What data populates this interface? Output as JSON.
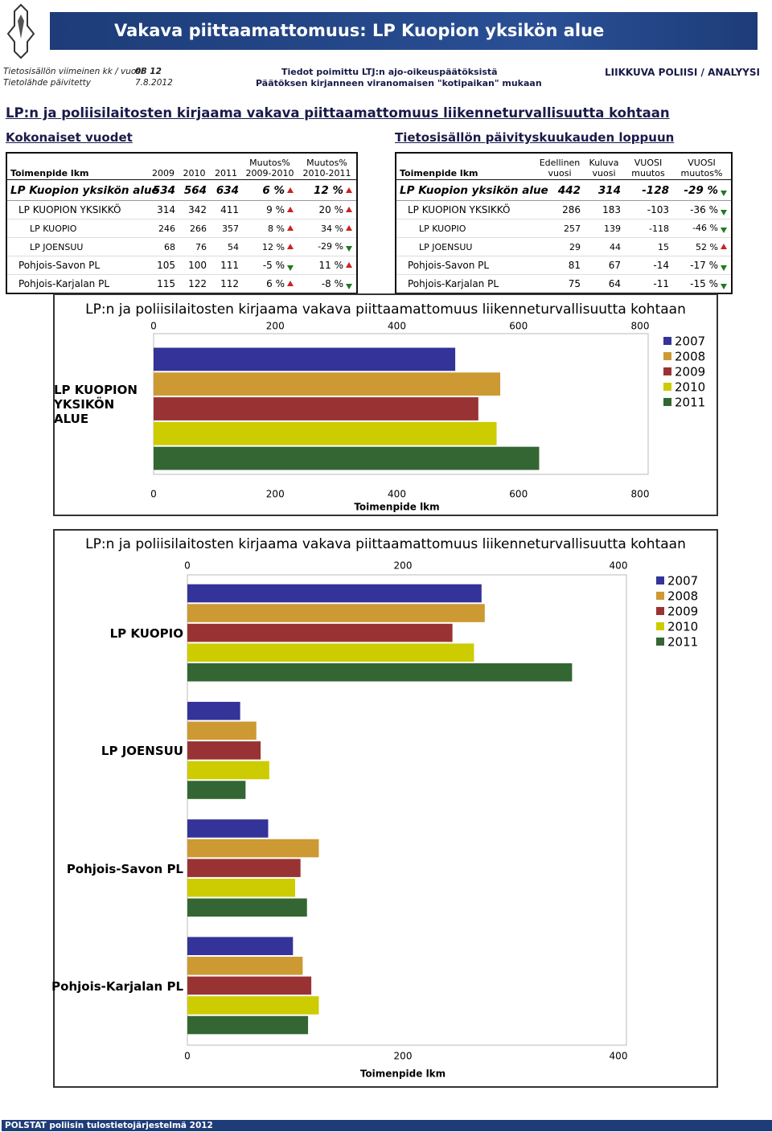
{
  "header": {
    "title": "Vakava piittaamattomuus: LP Kuopion yksikön alue",
    "info": {
      "period_label": "Tietosisällön viimeinen kk / vuosi",
      "period": "08 12",
      "updated_label": "Tietolähde päivitetty",
      "updated": "7.8.2012",
      "source_1": "Tiedot poimittu LTJ:n ajo-oikeuspäätöksistä",
      "source_2": "Päätöksen kirjanneen viranomaisen \"kotipaikan\" mukaan",
      "unit": "LIIKKUVA POLIISI / ANALYYSI"
    }
  },
  "section_title": "LP:n ja poliisilaitosten kirjaama vakava piittaamattomuus liikenneturvallisuutta kohtaan",
  "table_left": {
    "caption": "Kokonaiset vuodet",
    "headers": [
      "Toimenpide lkm",
      "2009",
      "2010",
      "2011",
      "Muutos%\n2009-2010",
      "Muutos%\n2010-2011"
    ],
    "rows": [
      [
        "LP Kuopion yksikön alue",
        "534",
        "564",
        "634",
        "6 %",
        "12 %"
      ],
      [
        "LP KUOPION YKSIKKÖ",
        "314",
        "342",
        "411",
        "9 %",
        "20 %"
      ],
      [
        "LP KUOPIO",
        "246",
        "266",
        "357",
        "8 %",
        "34 %"
      ],
      [
        "LP JOENSUU",
        "68",
        "76",
        "54",
        "12 %",
        "-29 %"
      ],
      [
        "Pohjois-Savon PL",
        "105",
        "100",
        "111",
        "-5 %",
        "11 %"
      ],
      [
        "Pohjois-Karjalan PL",
        "115",
        "122",
        "112",
        "6 %",
        "-8 %"
      ]
    ]
  },
  "table_right": {
    "caption": "Tietosisällön päivityskuukauden loppuun",
    "headers": [
      "Toimenpide lkm",
      "Edellinen\nvuosi",
      "Kuluva\nvuosi",
      "VUOSI\nmuutos",
      "VUOSI\nmuutos%"
    ],
    "rows": [
      [
        "LP Kuopion yksikön alue",
        "442",
        "314",
        "-128",
        "-29 %"
      ],
      [
        "LP KUOPION YKSIKKÖ",
        "286",
        "183",
        "-103",
        "-36 %"
      ],
      [
        "LP KUOPIO",
        "257",
        "139",
        "-118",
        "-46 %"
      ],
      [
        "LP JOENSUU",
        "29",
        "44",
        "15",
        "52 %"
      ],
      [
        "Pohjois-Savon PL",
        "81",
        "67",
        "-14",
        "-17 %"
      ],
      [
        "Pohjois-Karjalan PL",
        "75",
        "64",
        "-11",
        "-15 %"
      ]
    ]
  },
  "charts": [
    {
      "type": "bar",
      "title": "LP:n ja poliisilaitosten kirjaama vakava piittaamattomuus liikenneturvallisuutta kohtaan",
      "categories": [
        "LP KUOPION YKSIKÖN ALUE"
      ],
      "xlabel": "Toimenpide lkm",
      "xlim": [
        0,
        800
      ],
      "xticks": [
        0,
        200,
        400,
        600,
        800
      ],
      "series": [
        {
          "name": "2007",
          "color": "#333399",
          "values": [
            496
          ]
        },
        {
          "name": "2008",
          "color": "#cc9933",
          "values": [
            570
          ]
        },
        {
          "name": "2009",
          "color": "#993333",
          "values": [
            534
          ]
        },
        {
          "name": "2010",
          "color": "#cccc00",
          "values": [
            564
          ]
        },
        {
          "name": "2011",
          "color": "#336633",
          "values": [
            634
          ]
        }
      ]
    },
    {
      "type": "bar",
      "title": "LP:n ja poliisilaitosten kirjaama vakava piittaamattomuus liikenneturvallisuutta kohtaan",
      "categories": [
        "LP KUOPIO",
        "LP JOENSUU",
        "Pohjois-Savon PL",
        "Pohjois-Karjalan PL"
      ],
      "xlabel": "Toimenpide lkm",
      "xlim": [
        0,
        400
      ],
      "xticks": [
        0,
        200,
        400
      ],
      "series": [
        {
          "name": "2007",
          "color": "#333399",
          "values": [
            273,
            49,
            75,
            98
          ]
        },
        {
          "name": "2008",
          "color": "#cc9933",
          "values": [
            276,
            64,
            122,
            107
          ]
        },
        {
          "name": "2009",
          "color": "#993333",
          "values": [
            246,
            68,
            105,
            115
          ]
        },
        {
          "name": "2010",
          "color": "#cccc00",
          "values": [
            266,
            76,
            100,
            122
          ]
        },
        {
          "name": "2011",
          "color": "#336633",
          "values": [
            357,
            54,
            111,
            112
          ]
        }
      ]
    }
  ],
  "footer": "POLSTAT poliisin tulostietojärjestelmä 2012"
}
